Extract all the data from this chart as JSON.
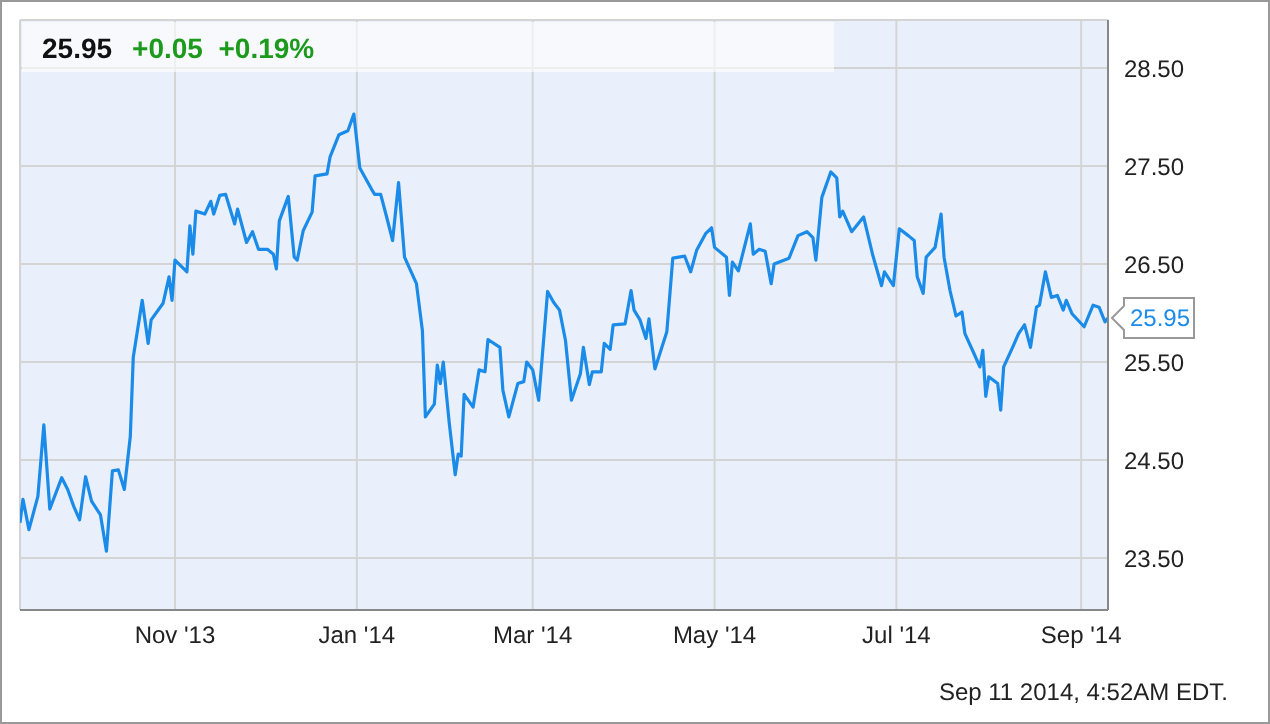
{
  "chart_data": {
    "type": "line",
    "title": "25.95",
    "subtitle": "+0.05  +0.19%",
    "x": [
      "2013-09-10",
      "2013-09-11",
      "2013-09-13",
      "2013-09-16",
      "2013-09-18",
      "2013-09-20",
      "2013-09-24",
      "2013-09-26",
      "2013-09-28",
      "2013-09-30",
      "2013-10-02",
      "2013-10-04",
      "2013-10-07",
      "2013-10-09",
      "2013-10-11",
      "2013-10-13",
      "2013-10-15",
      "2013-10-17",
      "2013-10-18",
      "2013-10-21",
      "2013-10-23",
      "2013-10-24",
      "2013-10-28",
      "2013-10-30",
      "2013-10-31",
      "2013-11-01",
      "2013-11-05",
      "2013-11-06",
      "2013-11-07",
      "2013-11-08",
      "2013-11-11",
      "2013-11-13",
      "2013-11-14",
      "2013-11-16",
      "2013-11-18",
      "2013-11-21",
      "2013-11-22",
      "2013-11-25",
      "2013-11-27",
      "2013-11-29",
      "2013-12-02",
      "2013-12-04",
      "2013-12-05",
      "2013-12-06",
      "2013-12-09",
      "2013-12-11",
      "2013-12-12",
      "2013-12-14",
      "2013-12-17",
      "2013-12-18",
      "2013-12-22",
      "2013-12-23",
      "2013-12-26",
      "2013-12-29",
      "2013-12-31",
      "2014-01-02",
      "2014-01-06",
      "2014-01-07",
      "2014-01-09",
      "2014-01-11",
      "2014-01-13",
      "2014-01-15",
      "2014-01-17",
      "2014-01-21",
      "2014-01-23",
      "2014-01-24",
      "2014-01-27",
      "2014-01-28",
      "2014-01-29",
      "2014-01-30",
      "2014-02-01",
      "2014-02-03",
      "2014-02-04",
      "2014-02-05",
      "2014-02-06",
      "2014-02-09",
      "2014-02-11",
      "2014-02-13",
      "2014-02-14",
      "2014-02-18",
      "2014-02-19",
      "2014-02-21",
      "2014-02-24",
      "2014-02-26",
      "2014-02-27",
      "2014-03-01",
      "2014-03-03",
      "2014-03-06",
      "2014-03-08",
      "2014-03-10",
      "2014-03-12",
      "2014-03-14",
      "2014-03-17",
      "2014-03-18",
      "2014-03-20",
      "2014-03-21",
      "2014-03-24",
      "2014-03-25",
      "2014-03-27",
      "2014-03-28",
      "2014-04-01",
      "2014-04-03",
      "2014-04-04",
      "2014-04-06",
      "2014-04-08",
      "2014-04-09",
      "2014-04-11",
      "2014-04-15",
      "2014-04-17",
      "2014-04-21",
      "2014-04-23",
      "2014-04-25",
      "2014-04-28",
      "2014-04-30",
      "2014-05-01",
      "2014-05-05",
      "2014-05-06",
      "2014-05-07",
      "2014-05-09",
      "2014-05-13",
      "2014-05-14",
      "2014-05-16",
      "2014-05-18",
      "2014-05-20",
      "2014-05-21",
      "2014-05-26",
      "2014-05-29",
      "2014-06-01",
      "2014-06-03",
      "2014-06-04",
      "2014-06-06",
      "2014-06-09",
      "2014-06-11",
      "2014-06-12",
      "2014-06-13",
      "2014-06-16",
      "2014-06-20",
      "2014-06-23",
      "2014-06-26",
      "2014-06-27",
      "2014-06-30",
      "2014-07-02",
      "2014-07-05",
      "2014-07-07",
      "2014-07-08",
      "2014-07-10",
      "2014-07-11",
      "2014-07-14",
      "2014-07-16",
      "2014-07-17",
      "2014-07-19",
      "2014-07-21",
      "2014-07-23",
      "2014-07-24",
      "2014-07-27",
      "2014-07-29",
      "2014-07-30",
      "2014-07-31",
      "2014-08-01",
      "2014-08-04",
      "2014-08-05",
      "2014-08-06",
      "2014-08-09",
      "2014-08-11",
      "2014-08-13",
      "2014-08-15",
      "2014-08-17",
      "2014-08-18",
      "2014-08-20",
      "2014-08-22",
      "2014-08-24",
      "2014-08-26",
      "2014-08-27",
      "2014-08-29",
      "2014-09-02",
      "2014-09-05",
      "2014-09-07",
      "2014-09-09",
      "2014-09-10"
    ],
    "series": [
      {
        "color": "#1a8be8",
        "values": [
          23.86,
          24.1,
          23.79,
          24.13,
          24.86,
          24.0,
          24.32,
          24.2,
          24.03,
          23.89,
          24.33,
          24.08,
          23.94,
          23.57,
          24.39,
          24.4,
          24.2,
          24.74,
          25.55,
          26.13,
          25.69,
          25.93,
          26.1,
          26.37,
          26.13,
          26.54,
          26.42,
          26.89,
          26.6,
          27.04,
          27.01,
          27.14,
          27.01,
          27.2,
          27.21,
          26.91,
          27.06,
          26.72,
          26.83,
          26.65,
          26.65,
          26.6,
          26.45,
          26.94,
          27.19,
          26.57,
          26.54,
          26.84,
          27.03,
          27.4,
          27.42,
          27.59,
          27.82,
          27.86,
          28.03,
          27.48,
          27.26,
          27.21,
          27.21,
          26.98,
          26.74,
          27.33,
          26.57,
          26.3,
          25.82,
          24.94,
          25.07,
          25.47,
          25.28,
          25.5,
          24.88,
          24.35,
          24.56,
          24.54,
          25.17,
          25.04,
          25.42,
          25.4,
          25.73,
          25.65,
          25.21,
          24.94,
          25.28,
          25.3,
          25.5,
          25.42,
          25.11,
          26.22,
          26.11,
          26.03,
          25.72,
          25.11,
          25.38,
          25.65,
          25.27,
          25.4,
          25.4,
          25.69,
          25.63,
          25.88,
          25.89,
          26.23,
          26.03,
          25.93,
          25.74,
          25.94,
          25.43,
          25.81,
          26.56,
          26.58,
          26.42,
          26.64,
          26.81,
          26.87,
          26.67,
          26.57,
          26.18,
          26.52,
          26.43,
          26.91,
          26.6,
          26.65,
          26.63,
          26.3,
          26.5,
          26.56,
          26.79,
          26.83,
          26.77,
          26.54,
          27.18,
          27.44,
          27.38,
          26.98,
          27.04,
          26.83,
          26.98,
          26.6,
          26.28,
          26.42,
          26.28,
          26.86,
          26.79,
          26.74,
          26.37,
          26.2,
          26.57,
          26.67,
          27.01,
          26.57,
          26.23,
          25.97,
          26.01,
          25.79,
          25.59,
          25.45,
          25.62,
          25.15,
          25.35,
          25.28,
          25.01,
          25.45,
          25.65,
          25.79,
          25.88,
          25.65,
          26.06,
          26.08,
          26.42,
          26.16,
          26.18,
          26.03,
          26.13,
          25.99,
          25.86,
          26.08,
          26.06,
          25.91,
          25.95
        ]
      }
    ],
    "xlim": [
      "2013-09-10",
      "2014-09-10"
    ],
    "xticks": [
      {
        "value": "2013-11-01",
        "label": "Nov '13"
      },
      {
        "value": "2014-01-01",
        "label": "Jan '14"
      },
      {
        "value": "2014-03-01",
        "label": "Mar '14"
      },
      {
        "value": "2014-05-01",
        "label": "May '14"
      },
      {
        "value": "2014-07-01",
        "label": "Jul '14"
      },
      {
        "value": "2014-09-01",
        "label": "Sep '14"
      }
    ],
    "ylim": [
      22.97,
      28.99
    ],
    "yticks": [
      {
        "value": 23.5,
        "label": "23.50"
      },
      {
        "value": 24.5,
        "label": "24.50"
      },
      {
        "value": 25.5,
        "label": "25.50"
      },
      {
        "value": 26.5,
        "label": "26.50"
      },
      {
        "value": 27.5,
        "label": "27.50"
      },
      {
        "value": 28.5,
        "label": "28.50"
      }
    ],
    "grid": true,
    "annotations": [
      {
        "text": "25.95",
        "x": "2014-09-10",
        "y": 25.95
      },
      "Sep 11 2014, 4:52AM EDT."
    ]
  }
}
